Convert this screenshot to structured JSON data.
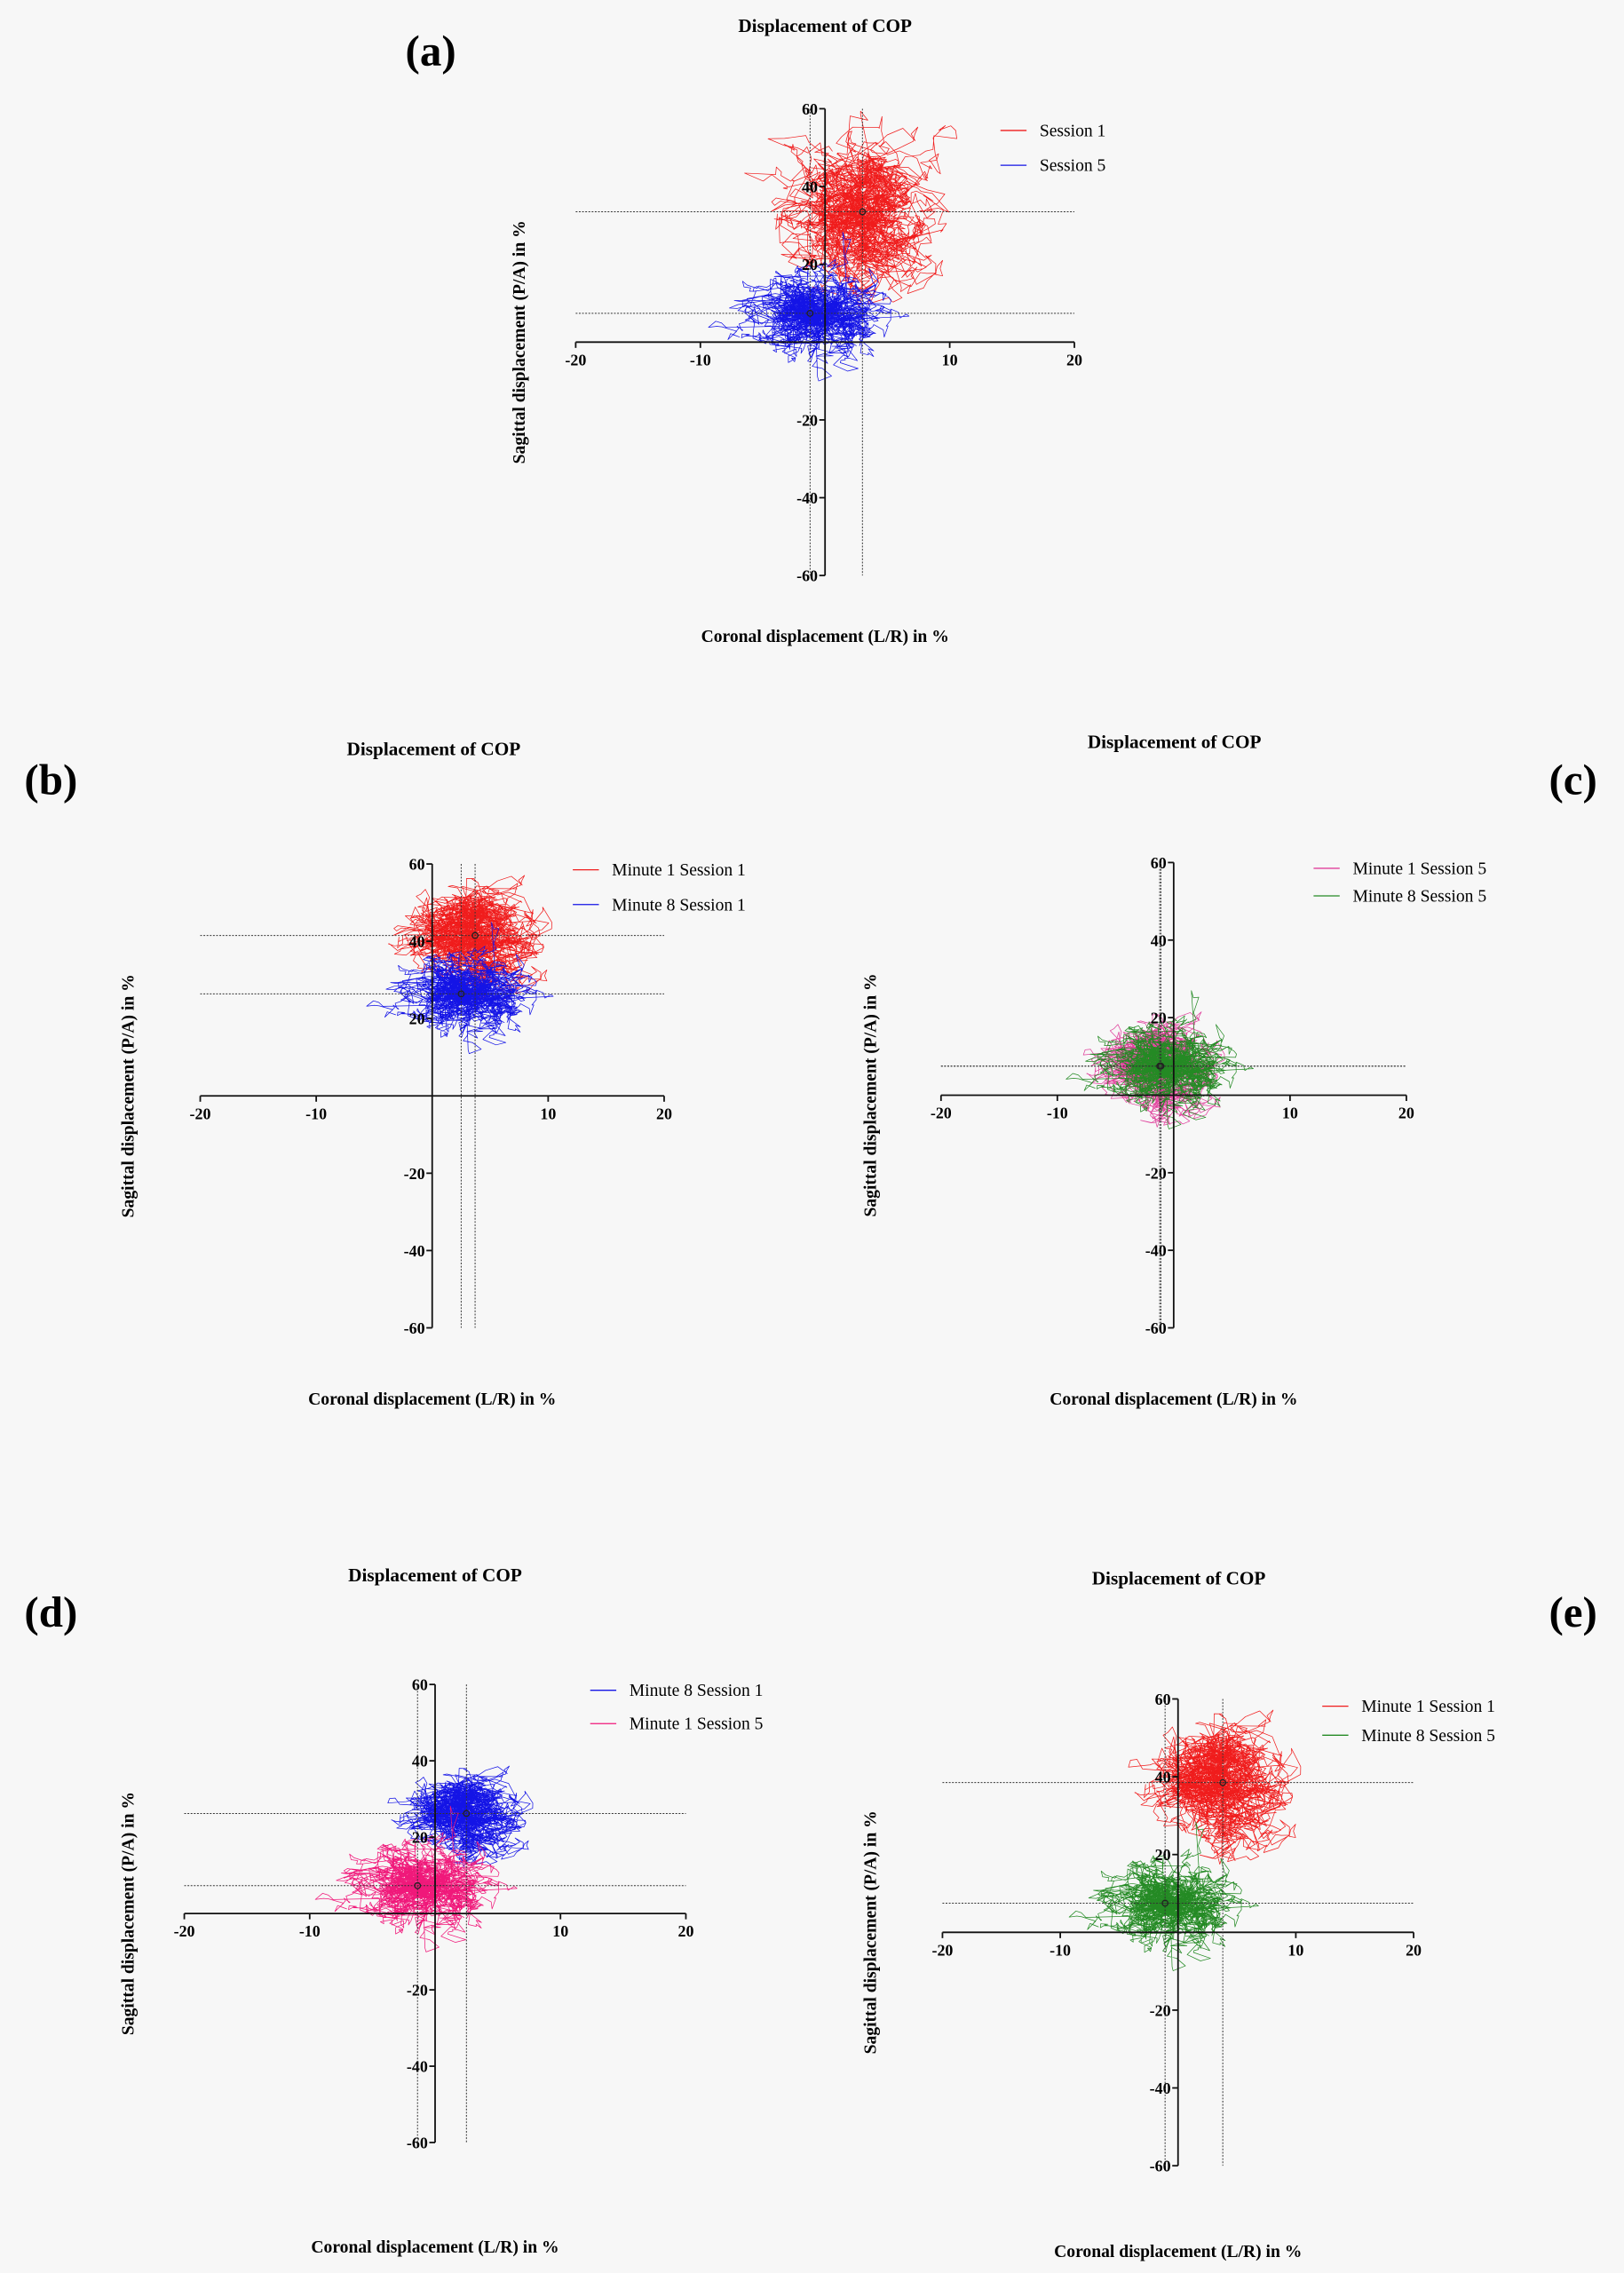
{
  "chart_data": [
    {
      "panel": "(a)",
      "type": "line",
      "title": "Displacement of COP",
      "xlabel": "Coronal displacement (L/R) in %",
      "ylabel": "Sagittal displacement (P/A) in %",
      "xlim": [
        -20,
        20
      ],
      "ylim": [
        -60,
        60
      ],
      "xticks": [
        "-20",
        "-10",
        "10",
        "20"
      ],
      "xtick_values": [
        -20,
        -10,
        10,
        20
      ],
      "yticks": [
        "60",
        "40",
        "20",
        "-20",
        "-40",
        "-60"
      ],
      "ytick_values": [
        60,
        40,
        20,
        -20,
        -40,
        -60
      ],
      "legend_position": "top-right",
      "series": [
        {
          "name": "Session 1",
          "color": "#f01c1c",
          "mean": [
            3.0,
            33.5
          ],
          "spread_sd": [
            2.6,
            7.0
          ]
        },
        {
          "name": "Session 5",
          "color": "#1414e6",
          "mean": [
            -1.2,
            7.4
          ],
          "spread_sd": [
            2.0,
            4.5
          ]
        }
      ]
    },
    {
      "panel": "(b)",
      "type": "line",
      "title": "Displacement of COP",
      "xlabel": "Coronal displacement (L/R) in %",
      "ylabel": "Sagittal displacement (P/A) in %",
      "xlim": [
        -20,
        20
      ],
      "ylim": [
        -60,
        60
      ],
      "xticks": [
        "-20",
        "-10",
        "10",
        "20"
      ],
      "xtick_values": [
        -20,
        -10,
        10,
        20
      ],
      "yticks": [
        "60",
        "40",
        "20",
        "-20",
        "-40",
        "-60"
      ],
      "ytick_values": [
        60,
        40,
        20,
        -20,
        -40,
        -60
      ],
      "legend_position": "top-right",
      "series": [
        {
          "name": "Minute 1 Session 1",
          "color": "#f01c1c",
          "mean": [
            3.7,
            41.5
          ],
          "spread_sd": [
            2.5,
            5.0
          ]
        },
        {
          "name": "Minute 8 Session 1",
          "color": "#1414e6",
          "mean": [
            2.5,
            26.4
          ],
          "spread_sd": [
            2.0,
            4.0
          ]
        }
      ]
    },
    {
      "panel": "(c)",
      "type": "line",
      "title": "Displacement of COP",
      "xlabel": "Coronal displacement (L/R) in %",
      "ylabel": "Sagittal displacement (P/A) in %",
      "xlim": [
        -20,
        20
      ],
      "ylim": [
        -60,
        60
      ],
      "xticks": [
        "-20",
        "-10",
        "10",
        "20"
      ],
      "xtick_values": [
        -20,
        -10,
        10,
        20
      ],
      "yticks": [
        "60",
        "40",
        "20",
        "-20",
        "-40",
        "-60"
      ],
      "ytick_values": [
        60,
        40,
        20,
        -20,
        -40,
        -60
      ],
      "legend_position": "top-right",
      "series": [
        {
          "name": "Minute 1 Session 5",
          "color": "#e0409c",
          "mean": [
            -1.2,
            7.5
          ],
          "spread_sd": [
            2.1,
            4.5
          ]
        },
        {
          "name": "Minute 8 Session 5",
          "color": "#248a24",
          "mean": [
            -1.1,
            7.5
          ],
          "spread_sd": [
            2.0,
            4.2
          ]
        }
      ]
    },
    {
      "panel": "(d)",
      "type": "line",
      "title": "Displacement of COP",
      "xlabel": "Coronal displacement (L/R) in %",
      "ylabel": "Sagittal displacement (P/A) in %",
      "xlim": [
        -20,
        20
      ],
      "ylim": [
        -60,
        60
      ],
      "xticks": [
        "-20",
        "-10",
        "10",
        "20"
      ],
      "xtick_values": [
        -20,
        -10,
        10,
        20
      ],
      "yticks": [
        "60",
        "40",
        "20",
        "-20",
        "-40",
        "-60"
      ],
      "ytick_values": [
        60,
        40,
        20,
        -20,
        -40,
        -60
      ],
      "legend_position": "top-right",
      "series": [
        {
          "name": "Minute 8 Session 1",
          "color": "#1414e6",
          "mean": [
            2.5,
            26.2
          ],
          "spread_sd": [
            2.0,
            4.0
          ]
        },
        {
          "name": "Minute 1 Session 5",
          "color": "#f0187a",
          "mean": [
            -1.4,
            7.3
          ],
          "spread_sd": [
            2.0,
            4.5
          ]
        }
      ]
    },
    {
      "panel": "(e)",
      "type": "line",
      "title": "Displacement of COP",
      "xlabel": "Coronal displacement (L/R) in %",
      "ylabel": "Sagittal displacement (P/A) in %",
      "xlim": [
        -20,
        20
      ],
      "ylim": [
        -60,
        60
      ],
      "xticks": [
        "-20",
        "-10",
        "10",
        "20"
      ],
      "xtick_values": [
        -20,
        -10,
        10,
        20
      ],
      "yticks": [
        "60",
        "40",
        "20",
        "-20",
        "-40",
        "-60"
      ],
      "ytick_values": [
        60,
        40,
        20,
        -20,
        -40,
        -60
      ],
      "legend_position": "top-right",
      "series": [
        {
          "name": "Minute 1 Session 1",
          "color": "#f01c1c",
          "mean": [
            3.8,
            38.5
          ],
          "spread_sd": [
            2.5,
            6.0
          ]
        },
        {
          "name": "Minute 8 Session 5",
          "color": "#248a24",
          "mean": [
            -1.1,
            7.5
          ],
          "spread_sd": [
            2.0,
            4.5
          ]
        }
      ]
    }
  ]
}
